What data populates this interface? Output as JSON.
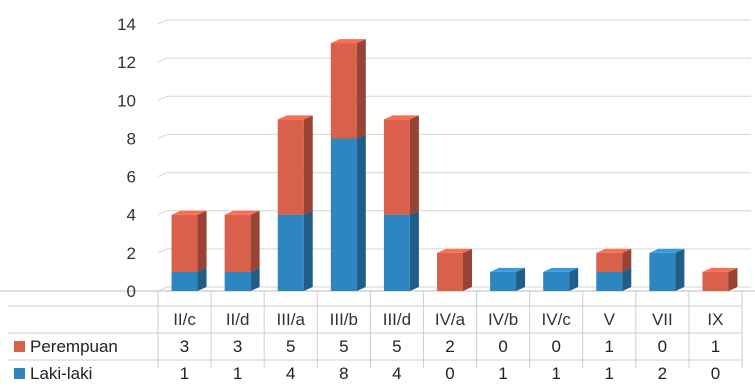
{
  "chart_data": {
    "type": "bar",
    "stacked": true,
    "three_d": true,
    "categories": [
      "II/c",
      "II/d",
      "III/a",
      "III/b",
      "III/d",
      "IV/a",
      "IV/b",
      "IV/c",
      "V",
      "VII",
      "IX"
    ],
    "series": [
      {
        "name": "Laki-laki",
        "color": "#2e86c1",
        "values": [
          1,
          1,
          4,
          8,
          4,
          0,
          1,
          1,
          1,
          2,
          0
        ]
      },
      {
        "name": "Perempuan",
        "color": "#d9604a",
        "values": [
          3,
          3,
          5,
          5,
          5,
          2,
          0,
          0,
          1,
          0,
          1
        ]
      }
    ],
    "table_row_order": [
      "Perempuan",
      "Laki-laki"
    ],
    "ylim": [
      0,
      14
    ],
    "yticks": [
      0,
      2,
      4,
      6,
      8,
      10,
      12,
      14
    ],
    "grid": true,
    "legend": "data-table-rows",
    "title": "",
    "xlabel": "",
    "ylabel": ""
  }
}
